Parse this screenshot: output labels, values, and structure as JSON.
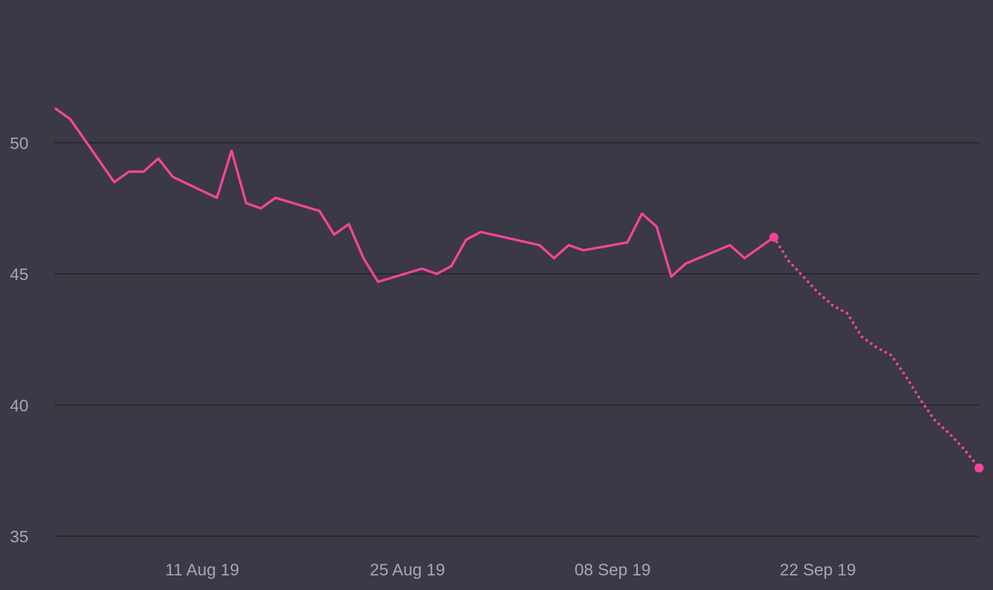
{
  "chart_data": {
    "type": "line",
    "title": "",
    "xlabel": "",
    "ylabel": "",
    "x_range": [
      "2019-08-01",
      "2019-10-04"
    ],
    "ylim": [
      35,
      55
    ],
    "y_ticks": [
      35,
      40,
      45,
      50
    ],
    "y_tick_labels": [
      "35",
      "40",
      "45",
      "50"
    ],
    "x_ticks": [
      "2019-08-11",
      "2019-08-25",
      "2019-09-08",
      "2019-09-22"
    ],
    "x_tick_labels": [
      "11 Aug 19",
      "25 Aug 19",
      "08 Sep 19",
      "22 Sep 19"
    ],
    "grid": "horizontal",
    "legend": "none",
    "series": [
      {
        "style": "solid",
        "color": "#f5449a",
        "points": [
          {
            "x": "2019-08-01",
            "y": 51.3
          },
          {
            "x": "2019-08-02",
            "y": 50.9
          },
          {
            "x": "2019-08-05",
            "y": 48.5
          },
          {
            "x": "2019-08-06",
            "y": 48.9
          },
          {
            "x": "2019-08-07",
            "y": 48.9
          },
          {
            "x": "2019-08-08",
            "y": 49.4
          },
          {
            "x": "2019-08-09",
            "y": 48.7
          },
          {
            "x": "2019-08-12",
            "y": 47.9
          },
          {
            "x": "2019-08-13",
            "y": 49.7
          },
          {
            "x": "2019-08-14",
            "y": 47.7
          },
          {
            "x": "2019-08-15",
            "y": 47.5
          },
          {
            "x": "2019-08-16",
            "y": 47.9
          },
          {
            "x": "2019-08-19",
            "y": 47.4
          },
          {
            "x": "2019-08-20",
            "y": 46.5
          },
          {
            "x": "2019-08-21",
            "y": 46.9
          },
          {
            "x": "2019-08-22",
            "y": 45.6
          },
          {
            "x": "2019-08-23",
            "y": 44.7
          },
          {
            "x": "2019-08-26",
            "y": 45.2
          },
          {
            "x": "2019-08-27",
            "y": 45.0
          },
          {
            "x": "2019-08-28",
            "y": 45.3
          },
          {
            "x": "2019-08-29",
            "y": 46.3
          },
          {
            "x": "2019-08-30",
            "y": 46.6
          },
          {
            "x": "2019-09-03",
            "y": 46.1
          },
          {
            "x": "2019-09-04",
            "y": 45.6
          },
          {
            "x": "2019-09-05",
            "y": 46.1
          },
          {
            "x": "2019-09-06",
            "y": 45.9
          },
          {
            "x": "2019-09-09",
            "y": 46.2
          },
          {
            "x": "2019-09-10",
            "y": 47.3
          },
          {
            "x": "2019-09-11",
            "y": 46.8
          },
          {
            "x": "2019-09-12",
            "y": 44.9
          },
          {
            "x": "2019-09-13",
            "y": 45.4
          },
          {
            "x": "2019-09-16",
            "y": 46.1
          },
          {
            "x": "2019-09-17",
            "y": 45.6
          },
          {
            "x": "2019-09-19",
            "y": 46.4
          }
        ]
      },
      {
        "style": "dotted",
        "color": "#f5449a",
        "points": [
          {
            "x": "2019-09-19",
            "y": 46.4
          },
          {
            "x": "2019-09-20",
            "y": 45.5
          },
          {
            "x": "2019-09-21",
            "y": 44.9
          },
          {
            "x": "2019-09-22",
            "y": 44.3
          },
          {
            "x": "2019-09-23",
            "y": 43.8
          },
          {
            "x": "2019-09-24",
            "y": 43.5
          },
          {
            "x": "2019-09-25",
            "y": 42.6
          },
          {
            "x": "2019-09-26",
            "y": 42.2
          },
          {
            "x": "2019-09-27",
            "y": 41.9
          },
          {
            "x": "2019-09-28",
            "y": 41.1
          },
          {
            "x": "2019-09-29",
            "y": 40.2
          },
          {
            "x": "2019-09-30",
            "y": 39.4
          },
          {
            "x": "2019-10-01",
            "y": 38.9
          },
          {
            "x": "2019-10-02",
            "y": 38.3
          },
          {
            "x": "2019-10-03",
            "y": 37.6
          }
        ]
      }
    ],
    "markers": [
      {
        "x": "2019-09-19",
        "y": 46.4
      },
      {
        "x": "2019-10-03",
        "y": 37.6
      }
    ]
  }
}
